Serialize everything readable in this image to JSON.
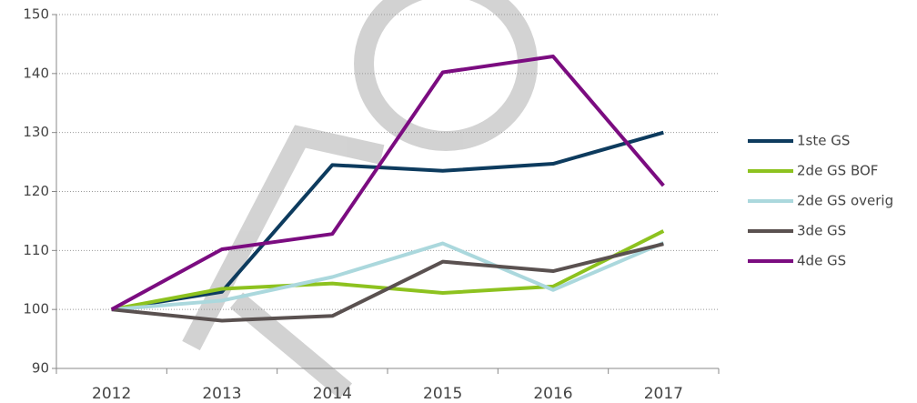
{
  "chart_data": {
    "type": "line",
    "categories": [
      "2012",
      "2013",
      "2014",
      "2015",
      "2016",
      "2017"
    ],
    "series": [
      {
        "name": "1ste GS",
        "color": "#0d3b5e",
        "values": [
          100,
          103,
          124.5,
          123.5,
          124.7,
          130
        ]
      },
      {
        "name": "2de GS BOF",
        "color": "#8dc21f",
        "values": [
          100,
          103.5,
          104.4,
          102.8,
          103.9,
          113.3
        ]
      },
      {
        "name": "2de GS overig",
        "color": "#abd8dd",
        "values": [
          100,
          101.5,
          105.5,
          111.2,
          103.3,
          111.3
        ]
      },
      {
        "name": "3de GS",
        "color": "#5a5150",
        "values": [
          100,
          98.1,
          98.9,
          108.1,
          106.5,
          111.1
        ]
      },
      {
        "name": "4de GS",
        "color": "#7b0c80",
        "values": [
          100,
          110.2,
          112.8,
          140.2,
          142.9,
          121
        ]
      }
    ],
    "ylim": [
      90,
      150
    ],
    "yticks": [
      90,
      100,
      110,
      120,
      130,
      140,
      150
    ],
    "grid": true,
    "legend": "right"
  }
}
